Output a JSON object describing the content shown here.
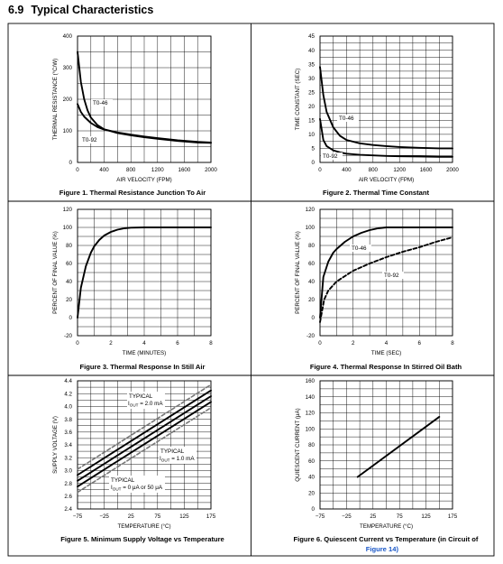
{
  "section": {
    "number": "6.9",
    "title": "Typical Characteristics"
  },
  "chart_data": [
    {
      "type": "line",
      "caption": "Figure 1. Thermal Resistance Junction To Air",
      "xlabel": "AIR VELOCITY (FPM)",
      "ylabel": "THERMAL RESISTANCE (°C/W)",
      "xlim": [
        0,
        2000
      ],
      "ylim": [
        0,
        400
      ],
      "xticks": [
        "0",
        "400",
        "800",
        "1200",
        "1600",
        "2000"
      ],
      "yticks": [
        "0",
        "100",
        "200",
        "300",
        "400"
      ],
      "grid": true,
      "series": [
        {
          "name": "T0-46",
          "style": "solid",
          "x": [
            0,
            50,
            100,
            150,
            200,
            300,
            400,
            600,
            800,
            1000,
            1200,
            1500,
            1800,
            2000
          ],
          "y": [
            350,
            255,
            200,
            165,
            142,
            118,
            105,
            93,
            86,
            80,
            75,
            68,
            63,
            62
          ]
        },
        {
          "name": "T0-92",
          "style": "solid",
          "x": [
            0,
            50,
            100,
            200,
            300,
            400,
            600,
            800,
            1000,
            1200,
            1500,
            1800,
            2000
          ],
          "y": [
            185,
            160,
            145,
            125,
            112,
            104,
            95,
            88,
            82,
            77,
            70,
            65,
            63
          ]
        }
      ]
    },
    {
      "type": "line",
      "caption": "Figure 2. Thermal Time Constant",
      "xlabel": "AIR VELOCITY (FPM)",
      "ylabel": "TIME CONSTANT (SEC)",
      "xlim": [
        0,
        2000
      ],
      "ylim": [
        0,
        45
      ],
      "xticks": [
        "0",
        "400",
        "800",
        "1200",
        "1600",
        "2000"
      ],
      "yticks": [
        "0",
        "5",
        "10",
        "15",
        "20",
        "25",
        "30",
        "35",
        "40",
        "45"
      ],
      "grid": true,
      "series": [
        {
          "name": "T0-46",
          "style": "solid",
          "x": [
            0,
            50,
            100,
            200,
            300,
            400,
            600,
            800,
            1000,
            1200,
            1500,
            1800,
            2000
          ],
          "y": [
            34,
            24,
            18,
            12.5,
            9.5,
            8,
            6.8,
            6.2,
            5.8,
            5.5,
            5.2,
            5,
            5
          ]
        },
        {
          "name": "T0-92",
          "style": "solid",
          "x": [
            0,
            50,
            100,
            200,
            300,
            400,
            600,
            800,
            1000,
            1200,
            1500,
            1800,
            2000
          ],
          "y": [
            15.5,
            8,
            5.8,
            4.3,
            3.6,
            3.1,
            2.7,
            2.5,
            2.3,
            2.2,
            2.1,
            2,
            2
          ]
        }
      ]
    },
    {
      "type": "line",
      "caption": "Figure 3. Thermal Response In Still Air",
      "xlabel": "TIME (MINUTES)",
      "ylabel": "PERCENT OF FINAL VALUE (%)",
      "xlim": [
        0,
        8
      ],
      "ylim": [
        -20,
        120
      ],
      "xticks": [
        "0",
        "2",
        "4",
        "6",
        "8"
      ],
      "yticks": [
        "-20",
        "0",
        "20",
        "40",
        "60",
        "80",
        "100",
        "120"
      ],
      "grid": true,
      "series": [
        {
          "name": "",
          "style": "solid",
          "x": [
            0,
            0.2,
            0.5,
            0.8,
            1.0,
            1.3,
            1.6,
            2.0,
            2.4,
            2.8,
            3.2,
            4.0,
            6.0,
            8.0
          ],
          "y": [
            0,
            33,
            57,
            72,
            79,
            86,
            91,
            95,
            97.5,
            99,
            99.7,
            100,
            100,
            100
          ]
        }
      ]
    },
    {
      "type": "line",
      "caption": "Figure 4. Thermal Response In Stirred Oil Bath",
      "xlabel": "TIME (SEC)",
      "ylabel": "PERCENT OF FINAL VALUE (%)",
      "xlim": [
        0,
        8
      ],
      "ylim": [
        -20,
        120
      ],
      "xticks": [
        "0",
        "2",
        "4",
        "6",
        "8"
      ],
      "yticks": [
        "-20",
        "0",
        "20",
        "40",
        "60",
        "80",
        "100",
        "120"
      ],
      "grid": true,
      "series": [
        {
          "name": "T0-46",
          "style": "solid",
          "x": [
            0,
            0.2,
            0.5,
            0.8,
            1.0,
            1.5,
            2.0,
            2.5,
            3.0,
            3.5,
            4.0,
            6.0,
            8.0
          ],
          "y": [
            0,
            45,
            62,
            72,
            76,
            84,
            90,
            94,
            97,
            99,
            100,
            100,
            100
          ]
        },
        {
          "name": "T0-92",
          "style": "dashed",
          "x": [
            0,
            0.25,
            0.5,
            1.0,
            1.5,
            2.0,
            2.5,
            3.0,
            4.0,
            5.0,
            6.0,
            7.0,
            8.0
          ],
          "y": [
            -5,
            20,
            30,
            40,
            46,
            52,
            56,
            60,
            67,
            73,
            78,
            84,
            89
          ]
        }
      ]
    },
    {
      "type": "line",
      "caption": "Figure 5. Minimum Supply Voltage vs Temperature",
      "xlabel": "TEMPERATURE (°C)",
      "ylabel": "SUPPLY VOLTAGE (V)",
      "xlim": [
        -75,
        175
      ],
      "ylim": [
        2.4,
        4.4
      ],
      "xticks": [
        "−75",
        "−25",
        "25",
        "75",
        "125",
        "175"
      ],
      "yticks": [
        "2.4",
        "2.6",
        "2.8",
        "3.0",
        "3.2",
        "3.4",
        "3.6",
        "3.8",
        "4.0",
        "4.2",
        "4.4"
      ],
      "grid": true,
      "series": [
        {
          "name": "TYPICAL I_OUT = 2.0 mA",
          "style": "solid",
          "x": [
            -75,
            175
          ],
          "y": [
            2.93,
            4.25
          ]
        },
        {
          "name": "TYPICAL I_OUT = 1.0 mA",
          "style": "solid",
          "x": [
            -75,
            175
          ],
          "y": [
            2.84,
            4.16
          ]
        },
        {
          "name": "TYPICAL I_OUT = 0 μA or 50 μA",
          "style": "solid",
          "x": [
            -75,
            175
          ],
          "y": [
            2.75,
            4.07
          ]
        },
        {
          "name": "",
          "style": "dashed",
          "x": [
            -75,
            175
          ],
          "y": [
            3.02,
            4.34
          ]
        },
        {
          "name": "",
          "style": "dashed",
          "x": [
            -75,
            175
          ],
          "y": [
            2.66,
            3.98
          ]
        }
      ],
      "annotations": [
        {
          "prefix": "TYPICAL",
          "sub_pre": "I",
          "sub": "OUT",
          "sub_post": " = 2.0 mA"
        },
        {
          "prefix": "TYPICAL",
          "sub_pre": "I",
          "sub": "OUT",
          "sub_post": " = 1.0 mA"
        },
        {
          "prefix": "TYPICAL",
          "sub_pre": "I",
          "sub": "OUT",
          "sub_post": " = 0 μA or 50 μA"
        }
      ]
    },
    {
      "type": "line",
      "caption": "Figure 6. Quiescent Current vs Temperature (in Circuit of",
      "caption_link": "Figure 14)",
      "xlabel": "TEMPERATURE (°C)",
      "ylabel": "QUIESCENT CURRENT (μA)",
      "xlim": [
        -75,
        175
      ],
      "ylim": [
        0,
        160
      ],
      "xticks": [
        "−75",
        "−25",
        "25",
        "75",
        "125",
        "175"
      ],
      "yticks": [
        "0",
        "20",
        "40",
        "60",
        "80",
        "100",
        "120",
        "140",
        "160"
      ],
      "grid": true,
      "series": [
        {
          "name": "",
          "style": "solid",
          "x": [
            -4,
            150
          ],
          "y": [
            40,
            115
          ]
        }
      ]
    }
  ]
}
